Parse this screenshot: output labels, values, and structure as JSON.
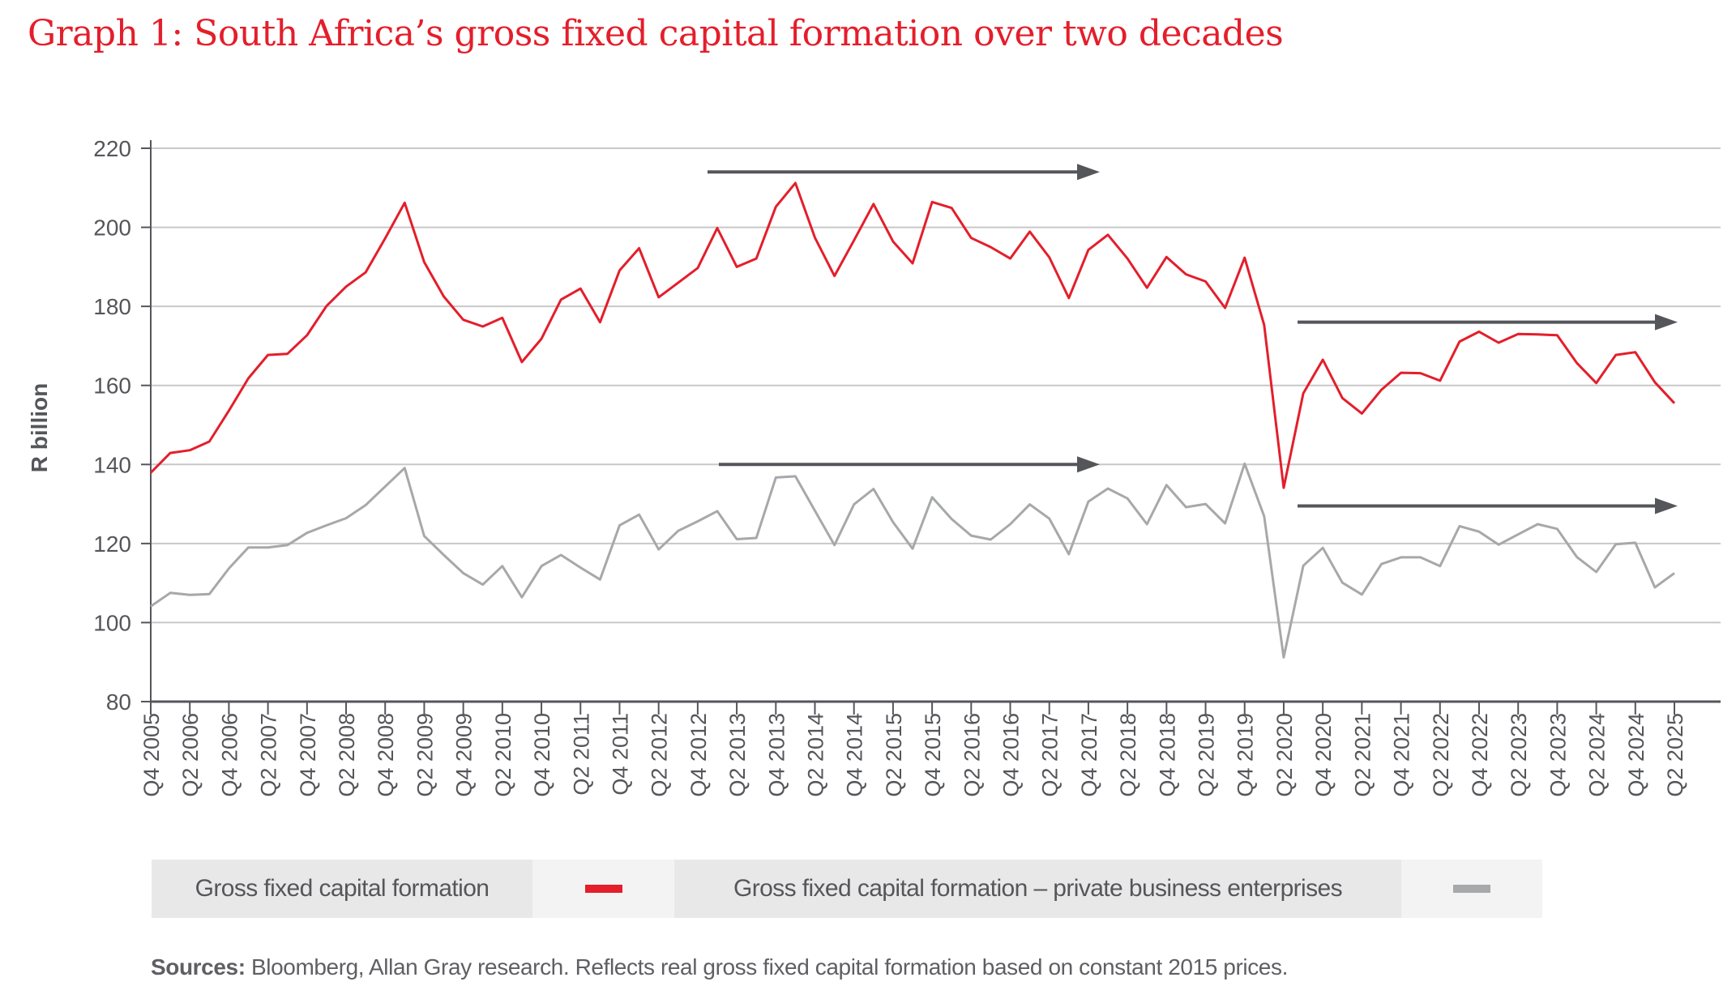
{
  "title": "Graph 1: South Africa’s gross fixed capital formation over two decades",
  "chart_data": {
    "type": "line",
    "title": "Graph 1: South Africa’s gross fixed capital formation over two decades",
    "xlabel": "",
    "ylabel": "R billion",
    "ylim": [
      80,
      220
    ],
    "yticks": [
      80,
      100,
      120,
      140,
      160,
      180,
      200,
      220
    ],
    "grid": true,
    "legend_position": "bottom",
    "x_tick_labels": [
      "Q4 2005",
      "Q2 2006",
      "Q4 2006",
      "Q2 2007",
      "Q4 2007",
      "Q2 2008",
      "Q4 2008",
      "Q2 2009",
      "Q4 2009",
      "Q2 2010",
      "Q4 2010",
      "Q2 2011",
      "Q4 2011",
      "Q2 2012",
      "Q4 2012",
      "Q2 2013",
      "Q4 2013",
      "Q2 2014",
      "Q4 2014",
      "Q2 2015",
      "Q4 2015",
      "Q2 2016",
      "Q4 2016",
      "Q2 2017",
      "Q4 2017",
      "Q2 2018",
      "Q4 2018",
      "Q2 2019",
      "Q4 2019",
      "Q2 2020",
      "Q4 2020",
      "Q2 2021",
      "Q4 2021",
      "Q2 2022",
      "Q4 2022",
      "Q2 2023",
      "Q4 2023",
      "Q2 2024",
      "Q4 2024",
      "Q2 2025"
    ],
    "series": [
      {
        "name": "Gross fixed capital formation",
        "color": "#e41e2b",
        "values": [
          137.9,
          142.9,
          143.6,
          145.8,
          153.6,
          161.8,
          167.7,
          168.0,
          172.7,
          180.1,
          185.0,
          188.6,
          197.2,
          206.2,
          191.2,
          182.5,
          176.6,
          174.9,
          177.1,
          165.9,
          171.8,
          181.7,
          184.5,
          176.0,
          189.1,
          194.7,
          182.3,
          186.0,
          189.7,
          199.8,
          190.0,
          192.1,
          205.2,
          211.2,
          197.4,
          187.7,
          196.7,
          205.9,
          196.4,
          190.9,
          206.4,
          204.9,
          197.3,
          195.0,
          192.1,
          198.9,
          192.4,
          182.1,
          194.3,
          198.1,
          192.1,
          184.7,
          192.5,
          188.1,
          186.3,
          179.6,
          192.3,
          175.3,
          134.1,
          158.0,
          166.5,
          156.8,
          152.9,
          158.9,
          163.2,
          163.1,
          161.2,
          171.1,
          173.6,
          170.8,
          173.0,
          172.9,
          172.7,
          165.7,
          160.6,
          167.7,
          168.4,
          160.8,
          155.5
        ]
      },
      {
        "name": "Gross fixed capital formation – private business enterprises",
        "color": "#a7a8aa",
        "values": [
          104.1,
          107.5,
          107.0,
          107.2,
          113.7,
          119.0,
          119.0,
          119.6,
          122.7,
          124.6,
          126.4,
          129.7,
          134.4,
          139.1,
          121.9,
          117.1,
          112.5,
          109.6,
          114.3,
          106.4,
          114.3,
          117.1,
          113.9,
          110.9,
          124.6,
          127.3,
          118.5,
          123.2,
          125.6,
          128.2,
          121.1,
          121.4,
          136.7,
          137.0,
          128.3,
          119.6,
          129.9,
          133.8,
          125.4,
          118.7,
          131.7,
          126.2,
          122.0,
          121.0,
          124.9,
          129.9,
          126.3,
          117.3,
          130.6,
          133.9,
          131.4,
          124.9,
          134.8,
          129.2,
          130.0,
          125.1,
          140.2,
          126.9,
          91.2,
          114.4,
          118.9,
          110.1,
          107.1,
          114.8,
          116.5,
          116.5,
          114.3,
          124.4,
          123.0,
          119.7,
          122.3,
          124.9,
          123.7,
          116.6,
          112.8,
          119.8,
          120.2,
          108.9,
          112.5
        ]
      }
    ]
  },
  "legend": {
    "items": [
      {
        "label": "Gross fixed capital formation",
        "color": "#e41e2b"
      },
      {
        "label": "Gross fixed capital formation – private business enterprises",
        "color": "#a7a8aa"
      }
    ]
  },
  "sources": {
    "label": "Sources:",
    "text": " Bloomberg, Allan Gray research. Reflects real gross fixed capital formation based on constant 2015 prices."
  }
}
